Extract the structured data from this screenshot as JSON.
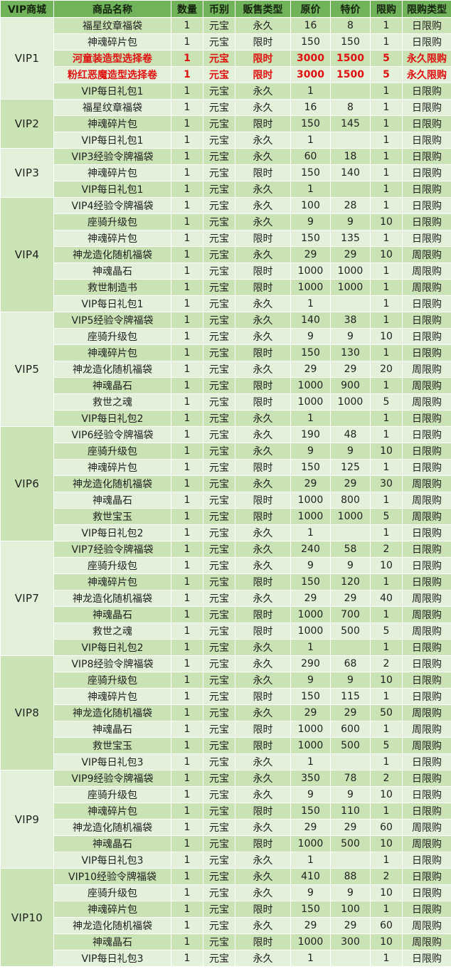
{
  "headers": [
    "VIP商城",
    "商品名称",
    "数量",
    "币别",
    "贩售类型",
    "原价",
    "特价",
    "限购",
    "限购类型"
  ],
  "groups": [
    {
      "vip": "VIP1",
      "rows": [
        {
          "name": "福星纹章福袋",
          "qty": "1",
          "cur": "元宝",
          "sale": "永久",
          "orig": "16",
          "special": "8",
          "limit": "1",
          "ltype": "日限购"
        },
        {
          "name": "神魂碎片包",
          "qty": "1",
          "cur": "元宝",
          "sale": "限时",
          "orig": "150",
          "special": "150",
          "limit": "1",
          "ltype": "日限购"
        },
        {
          "name": "河童装造型选择卷",
          "qty": "1",
          "cur": "元宝",
          "sale": "限时",
          "orig": "3000",
          "special": "1500",
          "limit": "5",
          "ltype": "永久限购",
          "highlight": true
        },
        {
          "name": "粉红恶魔造型选择卷",
          "qty": "1",
          "cur": "元宝",
          "sale": "限时",
          "orig": "3000",
          "special": "1500",
          "limit": "5",
          "ltype": "永久限购",
          "highlight": true
        },
        {
          "name": "VIP每日礼包1",
          "qty": "1",
          "cur": "元宝",
          "sale": "永久",
          "orig": "1",
          "special": "",
          "limit": "1",
          "ltype": "日限购"
        }
      ]
    },
    {
      "vip": "VIP2",
      "rows": [
        {
          "name": "福星纹章福袋",
          "qty": "1",
          "cur": "元宝",
          "sale": "永久",
          "orig": "16",
          "special": "8",
          "limit": "1",
          "ltype": "日限购"
        },
        {
          "name": "神魂碎片包",
          "qty": "1",
          "cur": "元宝",
          "sale": "限时",
          "orig": "150",
          "special": "145",
          "limit": "1",
          "ltype": "日限购"
        },
        {
          "name": "VIP每日礼包1",
          "qty": "1",
          "cur": "元宝",
          "sale": "永久",
          "orig": "1",
          "special": "",
          "limit": "1",
          "ltype": "日限购"
        }
      ]
    },
    {
      "vip": "VIP3",
      "rows": [
        {
          "name": "VIP3经验令牌福袋",
          "qty": "1",
          "cur": "元宝",
          "sale": "永久",
          "orig": "60",
          "special": "18",
          "limit": "1",
          "ltype": "日限购"
        },
        {
          "name": "神魂碎片包",
          "qty": "1",
          "cur": "元宝",
          "sale": "限时",
          "orig": "150",
          "special": "140",
          "limit": "1",
          "ltype": "日限购"
        },
        {
          "name": "VIP每日礼包1",
          "qty": "1",
          "cur": "元宝",
          "sale": "永久",
          "orig": "1",
          "special": "",
          "limit": "1",
          "ltype": "日限购"
        }
      ]
    },
    {
      "vip": "VIP4",
      "rows": [
        {
          "name": "VIP4经验令牌福袋",
          "qty": "1",
          "cur": "元宝",
          "sale": "永久",
          "orig": "100",
          "special": "28",
          "limit": "1",
          "ltype": "日限购"
        },
        {
          "name": "座骑升级包",
          "qty": "1",
          "cur": "元宝",
          "sale": "永久",
          "orig": "9",
          "special": "9",
          "limit": "10",
          "ltype": "日限购"
        },
        {
          "name": "神魂碎片包",
          "qty": "1",
          "cur": "元宝",
          "sale": "限时",
          "orig": "150",
          "special": "135",
          "limit": "1",
          "ltype": "日限购"
        },
        {
          "name": "神龙造化随机福袋",
          "qty": "1",
          "cur": "元宝",
          "sale": "永久",
          "orig": "29",
          "special": "29",
          "limit": "10",
          "ltype": "周限购"
        },
        {
          "name": "神魂晶石",
          "qty": "1",
          "cur": "元宝",
          "sale": "限时",
          "orig": "1000",
          "special": "1000",
          "limit": "1",
          "ltype": "周限购"
        },
        {
          "name": "救世制造书",
          "qty": "1",
          "cur": "元宝",
          "sale": "限时",
          "orig": "1000",
          "special": "1000",
          "limit": "1",
          "ltype": "周限购"
        },
        {
          "name": "VIP每日礼包1",
          "qty": "1",
          "cur": "元宝",
          "sale": "永久",
          "orig": "1",
          "special": "",
          "limit": "1",
          "ltype": "日限购"
        }
      ]
    },
    {
      "vip": "VIP5",
      "rows": [
        {
          "name": "VIP5经验令牌福袋",
          "qty": "1",
          "cur": "元宝",
          "sale": "永久",
          "orig": "140",
          "special": "38",
          "limit": "1",
          "ltype": "日限购"
        },
        {
          "name": "座骑升级包",
          "qty": "1",
          "cur": "元宝",
          "sale": "永久",
          "orig": "9",
          "special": "9",
          "limit": "10",
          "ltype": "日限购"
        },
        {
          "name": "神魂碎片包",
          "qty": "1",
          "cur": "元宝",
          "sale": "限时",
          "orig": "150",
          "special": "130",
          "limit": "1",
          "ltype": "日限购"
        },
        {
          "name": "神龙造化随机福袋",
          "qty": "1",
          "cur": "元宝",
          "sale": "永久",
          "orig": "29",
          "special": "29",
          "limit": "20",
          "ltype": "周限购"
        },
        {
          "name": "神魂晶石",
          "qty": "1",
          "cur": "元宝",
          "sale": "限时",
          "orig": "1000",
          "special": "900",
          "limit": "1",
          "ltype": "周限购"
        },
        {
          "name": "救世之魂",
          "qty": "1",
          "cur": "元宝",
          "sale": "限时",
          "orig": "1000",
          "special": "1000",
          "limit": "5",
          "ltype": "周限购"
        },
        {
          "name": "VIP每日礼包2",
          "qty": "1",
          "cur": "元宝",
          "sale": "永久",
          "orig": "1",
          "special": "",
          "limit": "1",
          "ltype": "日限购"
        }
      ]
    },
    {
      "vip": "VIP6",
      "rows": [
        {
          "name": "VIP6经验令牌福袋",
          "qty": "1",
          "cur": "元宝",
          "sale": "永久",
          "orig": "190",
          "special": "48",
          "limit": "1",
          "ltype": "日限购"
        },
        {
          "name": "座骑升级包",
          "qty": "1",
          "cur": "元宝",
          "sale": "永久",
          "orig": "9",
          "special": "9",
          "limit": "10",
          "ltype": "日限购"
        },
        {
          "name": "神魂碎片包",
          "qty": "1",
          "cur": "元宝",
          "sale": "限时",
          "orig": "150",
          "special": "125",
          "limit": "1",
          "ltype": "日限购"
        },
        {
          "name": "神龙造化随机福袋",
          "qty": "1",
          "cur": "元宝",
          "sale": "永久",
          "orig": "29",
          "special": "29",
          "limit": "30",
          "ltype": "周限购"
        },
        {
          "name": "神魂晶石",
          "qty": "1",
          "cur": "元宝",
          "sale": "限时",
          "orig": "1000",
          "special": "800",
          "limit": "1",
          "ltype": "周限购"
        },
        {
          "name": "救世宝玉",
          "qty": "1",
          "cur": "元宝",
          "sale": "限时",
          "orig": "1000",
          "special": "1000",
          "limit": "5",
          "ltype": "周限购"
        },
        {
          "name": "VIP每日礼包2",
          "qty": "1",
          "cur": "元宝",
          "sale": "永久",
          "orig": "1",
          "special": "",
          "limit": "1",
          "ltype": "日限购"
        }
      ]
    },
    {
      "vip": "VIP7",
      "rows": [
        {
          "name": "VIP7经验令牌福袋",
          "qty": "1",
          "cur": "元宝",
          "sale": "永久",
          "orig": "240",
          "special": "58",
          "limit": "2",
          "ltype": "日限购"
        },
        {
          "name": "座骑升级包",
          "qty": "1",
          "cur": "元宝",
          "sale": "永久",
          "orig": "9",
          "special": "9",
          "limit": "10",
          "ltype": "日限购"
        },
        {
          "name": "神魂碎片包",
          "qty": "1",
          "cur": "元宝",
          "sale": "限时",
          "orig": "150",
          "special": "120",
          "limit": "1",
          "ltype": "日限购"
        },
        {
          "name": "神龙造化随机福袋",
          "qty": "1",
          "cur": "元宝",
          "sale": "永久",
          "orig": "29",
          "special": "29",
          "limit": "40",
          "ltype": "周限购"
        },
        {
          "name": "神魂晶石",
          "qty": "1",
          "cur": "元宝",
          "sale": "限时",
          "orig": "1000",
          "special": "700",
          "limit": "1",
          "ltype": "周限购"
        },
        {
          "name": "救世之魂",
          "qty": "1",
          "cur": "元宝",
          "sale": "限时",
          "orig": "1000",
          "special": "500",
          "limit": "5",
          "ltype": "周限购"
        },
        {
          "name": "VIP每日礼包2",
          "qty": "1",
          "cur": "元宝",
          "sale": "永久",
          "orig": "1",
          "special": "",
          "limit": "1",
          "ltype": "日限购"
        }
      ]
    },
    {
      "vip": "VIP8",
      "rows": [
        {
          "name": "VIP8经验令牌福袋",
          "qty": "1",
          "cur": "元宝",
          "sale": "永久",
          "orig": "290",
          "special": "68",
          "limit": "2",
          "ltype": "日限购"
        },
        {
          "name": "座骑升级包",
          "qty": "1",
          "cur": "元宝",
          "sale": "永久",
          "orig": "9",
          "special": "9",
          "limit": "10",
          "ltype": "日限购"
        },
        {
          "name": "神魂碎片包",
          "qty": "1",
          "cur": "元宝",
          "sale": "限时",
          "orig": "150",
          "special": "115",
          "limit": "1",
          "ltype": "日限购"
        },
        {
          "name": "神龙造化随机福袋",
          "qty": "1",
          "cur": "元宝",
          "sale": "永久",
          "orig": "29",
          "special": "29",
          "limit": "50",
          "ltype": "周限购"
        },
        {
          "name": "神魂晶石",
          "qty": "1",
          "cur": "元宝",
          "sale": "限时",
          "orig": "1000",
          "special": "600",
          "limit": "1",
          "ltype": "周限购"
        },
        {
          "name": "救世宝玉",
          "qty": "1",
          "cur": "元宝",
          "sale": "限时",
          "orig": "1000",
          "special": "500",
          "limit": "5",
          "ltype": "周限购"
        },
        {
          "name": "VIP每日礼包3",
          "qty": "1",
          "cur": "元宝",
          "sale": "永久",
          "orig": "1",
          "special": "",
          "limit": "1",
          "ltype": "日限购"
        }
      ]
    },
    {
      "vip": "VIP9",
      "rows": [
        {
          "name": "VIP9经验令牌福袋",
          "qty": "1",
          "cur": "元宝",
          "sale": "永久",
          "orig": "350",
          "special": "78",
          "limit": "2",
          "ltype": "日限购"
        },
        {
          "name": "座骑升级包",
          "qty": "1",
          "cur": "元宝",
          "sale": "永久",
          "orig": "9",
          "special": "9",
          "limit": "10",
          "ltype": "日限购"
        },
        {
          "name": "神魂碎片包",
          "qty": "1",
          "cur": "元宝",
          "sale": "限时",
          "orig": "150",
          "special": "110",
          "limit": "1",
          "ltype": "日限购"
        },
        {
          "name": "神龙造化随机福袋",
          "qty": "1",
          "cur": "元宝",
          "sale": "永久",
          "orig": "29",
          "special": "29",
          "limit": "60",
          "ltype": "周限购"
        },
        {
          "name": "神魂晶石",
          "qty": "1",
          "cur": "元宝",
          "sale": "限时",
          "orig": "1000",
          "special": "500",
          "limit": "10",
          "ltype": "周限购"
        },
        {
          "name": "VIP每日礼包3",
          "qty": "1",
          "cur": "元宝",
          "sale": "永久",
          "orig": "1",
          "special": "",
          "limit": "1",
          "ltype": "日限购"
        }
      ]
    },
    {
      "vip": "VIP10",
      "rows": [
        {
          "name": "VIP10经验令牌福袋",
          "qty": "1",
          "cur": "元宝",
          "sale": "永久",
          "orig": "410",
          "special": "88",
          "limit": "2",
          "ltype": "日限购"
        },
        {
          "name": "座骑升级包",
          "qty": "1",
          "cur": "元宝",
          "sale": "永久",
          "orig": "9",
          "special": "9",
          "limit": "10",
          "ltype": "日限购"
        },
        {
          "name": "神魂碎片包",
          "qty": "1",
          "cur": "元宝",
          "sale": "限时",
          "orig": "150",
          "special": "100",
          "limit": "1",
          "ltype": "日限购"
        },
        {
          "name": "神龙造化随机福袋",
          "qty": "1",
          "cur": "元宝",
          "sale": "永久",
          "orig": "29",
          "special": "29",
          "limit": "60",
          "ltype": "周限购"
        },
        {
          "name": "神魂晶石",
          "qty": "1",
          "cur": "元宝",
          "sale": "限时",
          "orig": "1000",
          "special": "300",
          "limit": "10",
          "ltype": "周限购"
        },
        {
          "name": "VIP每日礼包3",
          "qty": "1",
          "cur": "元宝",
          "sale": "永久",
          "orig": "1",
          "special": "",
          "limit": "1",
          "ltype": "日限购"
        }
      ]
    }
  ]
}
